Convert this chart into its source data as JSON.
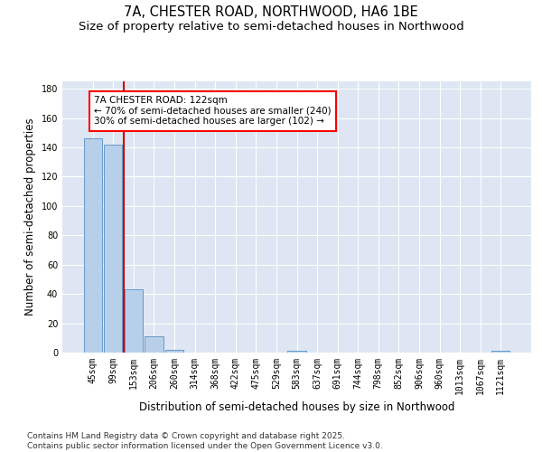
{
  "title1": "7A, CHESTER ROAD, NORTHWOOD, HA6 1BE",
  "title2": "Size of property relative to semi-detached houses in Northwood",
  "xlabel": "Distribution of semi-detached houses by size in Northwood",
  "ylabel": "Number of semi-detached properties",
  "categories": [
    "45sqm",
    "99sqm",
    "153sqm",
    "206sqm",
    "260sqm",
    "314sqm",
    "368sqm",
    "422sqm",
    "475sqm",
    "529sqm",
    "583sqm",
    "637sqm",
    "691sqm",
    "744sqm",
    "798sqm",
    "852sqm",
    "906sqm",
    "960sqm",
    "1013sqm",
    "1067sqm",
    "1121sqm"
  ],
  "values": [
    146,
    142,
    43,
    11,
    2,
    0,
    0,
    0,
    0,
    0,
    1,
    0,
    0,
    0,
    0,
    0,
    0,
    0,
    0,
    0,
    1
  ],
  "bar_color": "#b8cfea",
  "bar_edgecolor": "#6699cc",
  "vline_x": 1.5,
  "vline_color": "#cc0000",
  "annotation_text": "7A CHESTER ROAD: 122sqm\n← 70% of semi-detached houses are smaller (240)\n30% of semi-detached houses are larger (102) →",
  "ylim": [
    0,
    185
  ],
  "yticks": [
    0,
    20,
    40,
    60,
    80,
    100,
    120,
    140,
    160,
    180
  ],
  "bg_color": "#dde6f2",
  "footer": "Contains HM Land Registry data © Crown copyright and database right 2025.\nContains public sector information licensed under the Open Government Licence v3.0.",
  "title_fontsize": 10.5,
  "subtitle_fontsize": 9.5,
  "axis_label_fontsize": 8.5,
  "tick_fontsize": 7,
  "footer_fontsize": 6.5,
  "annot_fontsize": 7.5
}
